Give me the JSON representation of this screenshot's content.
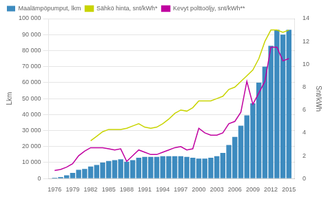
{
  "chart_data": {
    "type": "bar",
    "x": [
      1976,
      1977,
      1978,
      1979,
      1980,
      1981,
      1982,
      1983,
      1984,
      1985,
      1986,
      1987,
      1988,
      1989,
      1990,
      1991,
      1992,
      1993,
      1994,
      1995,
      1996,
      1997,
      1998,
      1999,
      2000,
      2001,
      2002,
      2003,
      2004,
      2005,
      2006,
      2007,
      2008,
      2009,
      2010,
      2011,
      2012,
      2013,
      2014,
      2015
    ],
    "xlim": [
      1975,
      2016
    ],
    "xticks": [
      1976,
      1979,
      1982,
      1985,
      1988,
      1991,
      1994,
      1997,
      2000,
      2003,
      2006,
      2009,
      2012,
      2015
    ],
    "ylabel": "Lkm",
    "y2label": "Snt/kWh",
    "ylim": [
      0,
      100000
    ],
    "yticks": [
      0,
      {
        "value": 10000,
        "label": "10 000"
      },
      {
        "value": 20000,
        "label": "20 000"
      },
      {
        "value": 30000,
        "label": "30 000"
      },
      {
        "value": 40000,
        "label": "40 000"
      },
      {
        "value": 50000,
        "label": "50 000"
      },
      {
        "value": 60000,
        "label": "60 000"
      },
      {
        "value": 70000,
        "label": "70 000"
      },
      {
        "value": 80000,
        "label": "80 000"
      },
      {
        "value": 90000,
        "label": "90 000"
      },
      {
        "value": 100000,
        "label": "100 000"
      }
    ],
    "y2lim": [
      0,
      14
    ],
    "y2ticks": [
      0,
      2,
      4,
      6,
      8,
      10,
      12,
      14
    ],
    "grid": true,
    "legend": "upper left",
    "series": [
      {
        "name": "Maalämpöpumput, lkm",
        "type": "bar",
        "color": "#3d8bbf",
        "values": [
          500,
          1000,
          2000,
          3500,
          5500,
          6000,
          7500,
          8500,
          10000,
          11000,
          11500,
          12000,
          10500,
          11500,
          13000,
          13500,
          13500,
          13500,
          14000,
          14000,
          14000,
          14000,
          13500,
          13000,
          12500,
          12500,
          13000,
          14000,
          16000,
          21000,
          26000,
          33000,
          39500,
          47000,
          60000,
          70000,
          83000,
          93000,
          90000,
          93000
        ]
      },
      {
        "name": "Sähkö hinta, snt/kWh*",
        "type": "line",
        "axis": "y2",
        "color": "#c8d400",
        "values": [
          null,
          null,
          null,
          null,
          null,
          null,
          3.3,
          3.7,
          4.1,
          4.3,
          4.3,
          4.3,
          4.4,
          4.6,
          4.8,
          4.5,
          4.4,
          4.5,
          4.8,
          5.2,
          5.7,
          6.0,
          5.9,
          6.2,
          6.8,
          6.8,
          6.8,
          7.0,
          7.2,
          7.8,
          8.0,
          8.5,
          9.0,
          9.5,
          10.5,
          12.0,
          13.0,
          13.0,
          12.8,
          13.0
        ]
      },
      {
        "name": "Kevyt polttoöljy, snt/kWh**",
        "type": "line",
        "axis": "y2",
        "color": "#c000a0",
        "values": [
          0.7,
          0.8,
          1.0,
          1.3,
          2.0,
          2.4,
          2.7,
          2.7,
          2.7,
          2.6,
          2.5,
          2.6,
          1.5,
          2.0,
          2.5,
          2.3,
          2.1,
          2.1,
          2.3,
          2.5,
          2.7,
          2.8,
          2.5,
          2.6,
          4.4,
          4.0,
          3.8,
          3.8,
          4.0,
          4.8,
          5.0,
          5.8,
          8.5,
          6.5,
          7.5,
          8.5,
          11.5,
          11.5,
          10.3,
          10.5
        ]
      }
    ]
  }
}
